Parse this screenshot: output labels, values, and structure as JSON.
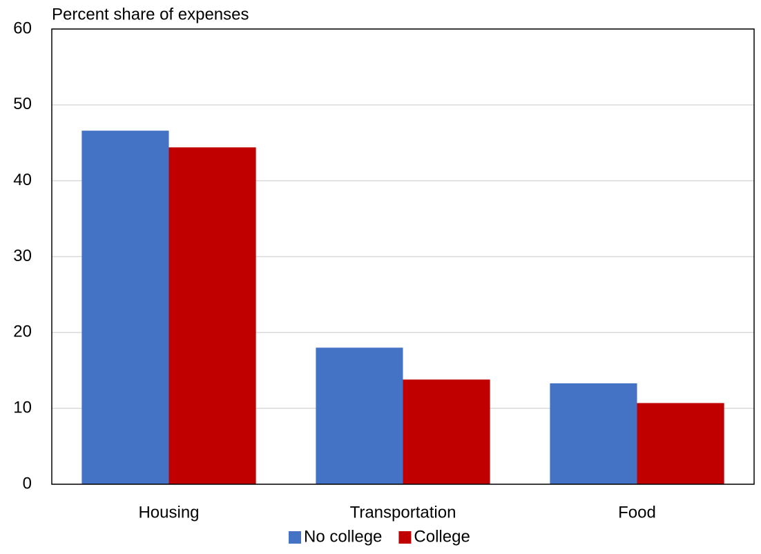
{
  "chart_data": {
    "type": "bar",
    "title": "Percent share of expenses",
    "categories": [
      "Housing",
      "Transportation",
      "Food"
    ],
    "series": [
      {
        "name": "No college",
        "color": "#4472c4",
        "values": [
          46.6,
          18.0,
          13.3
        ]
      },
      {
        "name": "College",
        "color": "#c00000",
        "values": [
          44.4,
          13.8,
          10.7
        ]
      }
    ],
    "ylim": [
      0,
      60
    ],
    "yticks": [
      0,
      10,
      20,
      30,
      40,
      50,
      60
    ],
    "grid": true,
    "legend": "bottom"
  }
}
